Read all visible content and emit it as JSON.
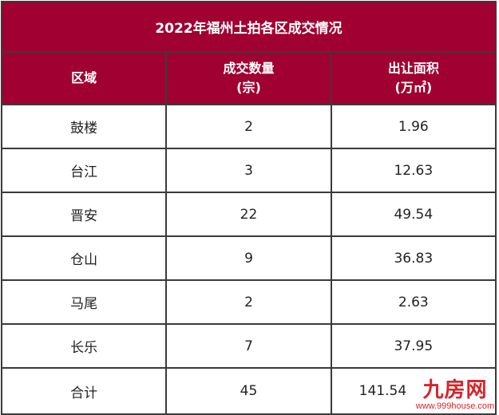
{
  "title": "2022年福州土拍各区成交情况",
  "headers": [
    {
      "line1": "区域",
      "line2": ""
    },
    {
      "line1": "成交数量",
      "line2": "(宗)"
    },
    {
      "line1": "出让面积",
      "line2": "(万㎡)"
    }
  ],
  "rows": [
    {
      "district": "鼓楼",
      "count": "2",
      "area": "1.96"
    },
    {
      "district": "台江",
      "count": "3",
      "area": "12.63"
    },
    {
      "district": "晋安",
      "count": "22",
      "area": "49.54"
    },
    {
      "district": "仓山",
      "count": "9",
      "area": "36.83"
    },
    {
      "district": "马尾",
      "count": "2",
      "area": "2.63"
    },
    {
      "district": "长乐",
      "count": "7",
      "area": "37.95"
    },
    {
      "district": "合计",
      "count": "45",
      "area": "141.54"
    }
  ],
  "watermark": {
    "logo": "九房网",
    "url": "www.999house.com"
  },
  "colors": {
    "header_bg": "#a10032",
    "watermark": "#d8232a"
  }
}
